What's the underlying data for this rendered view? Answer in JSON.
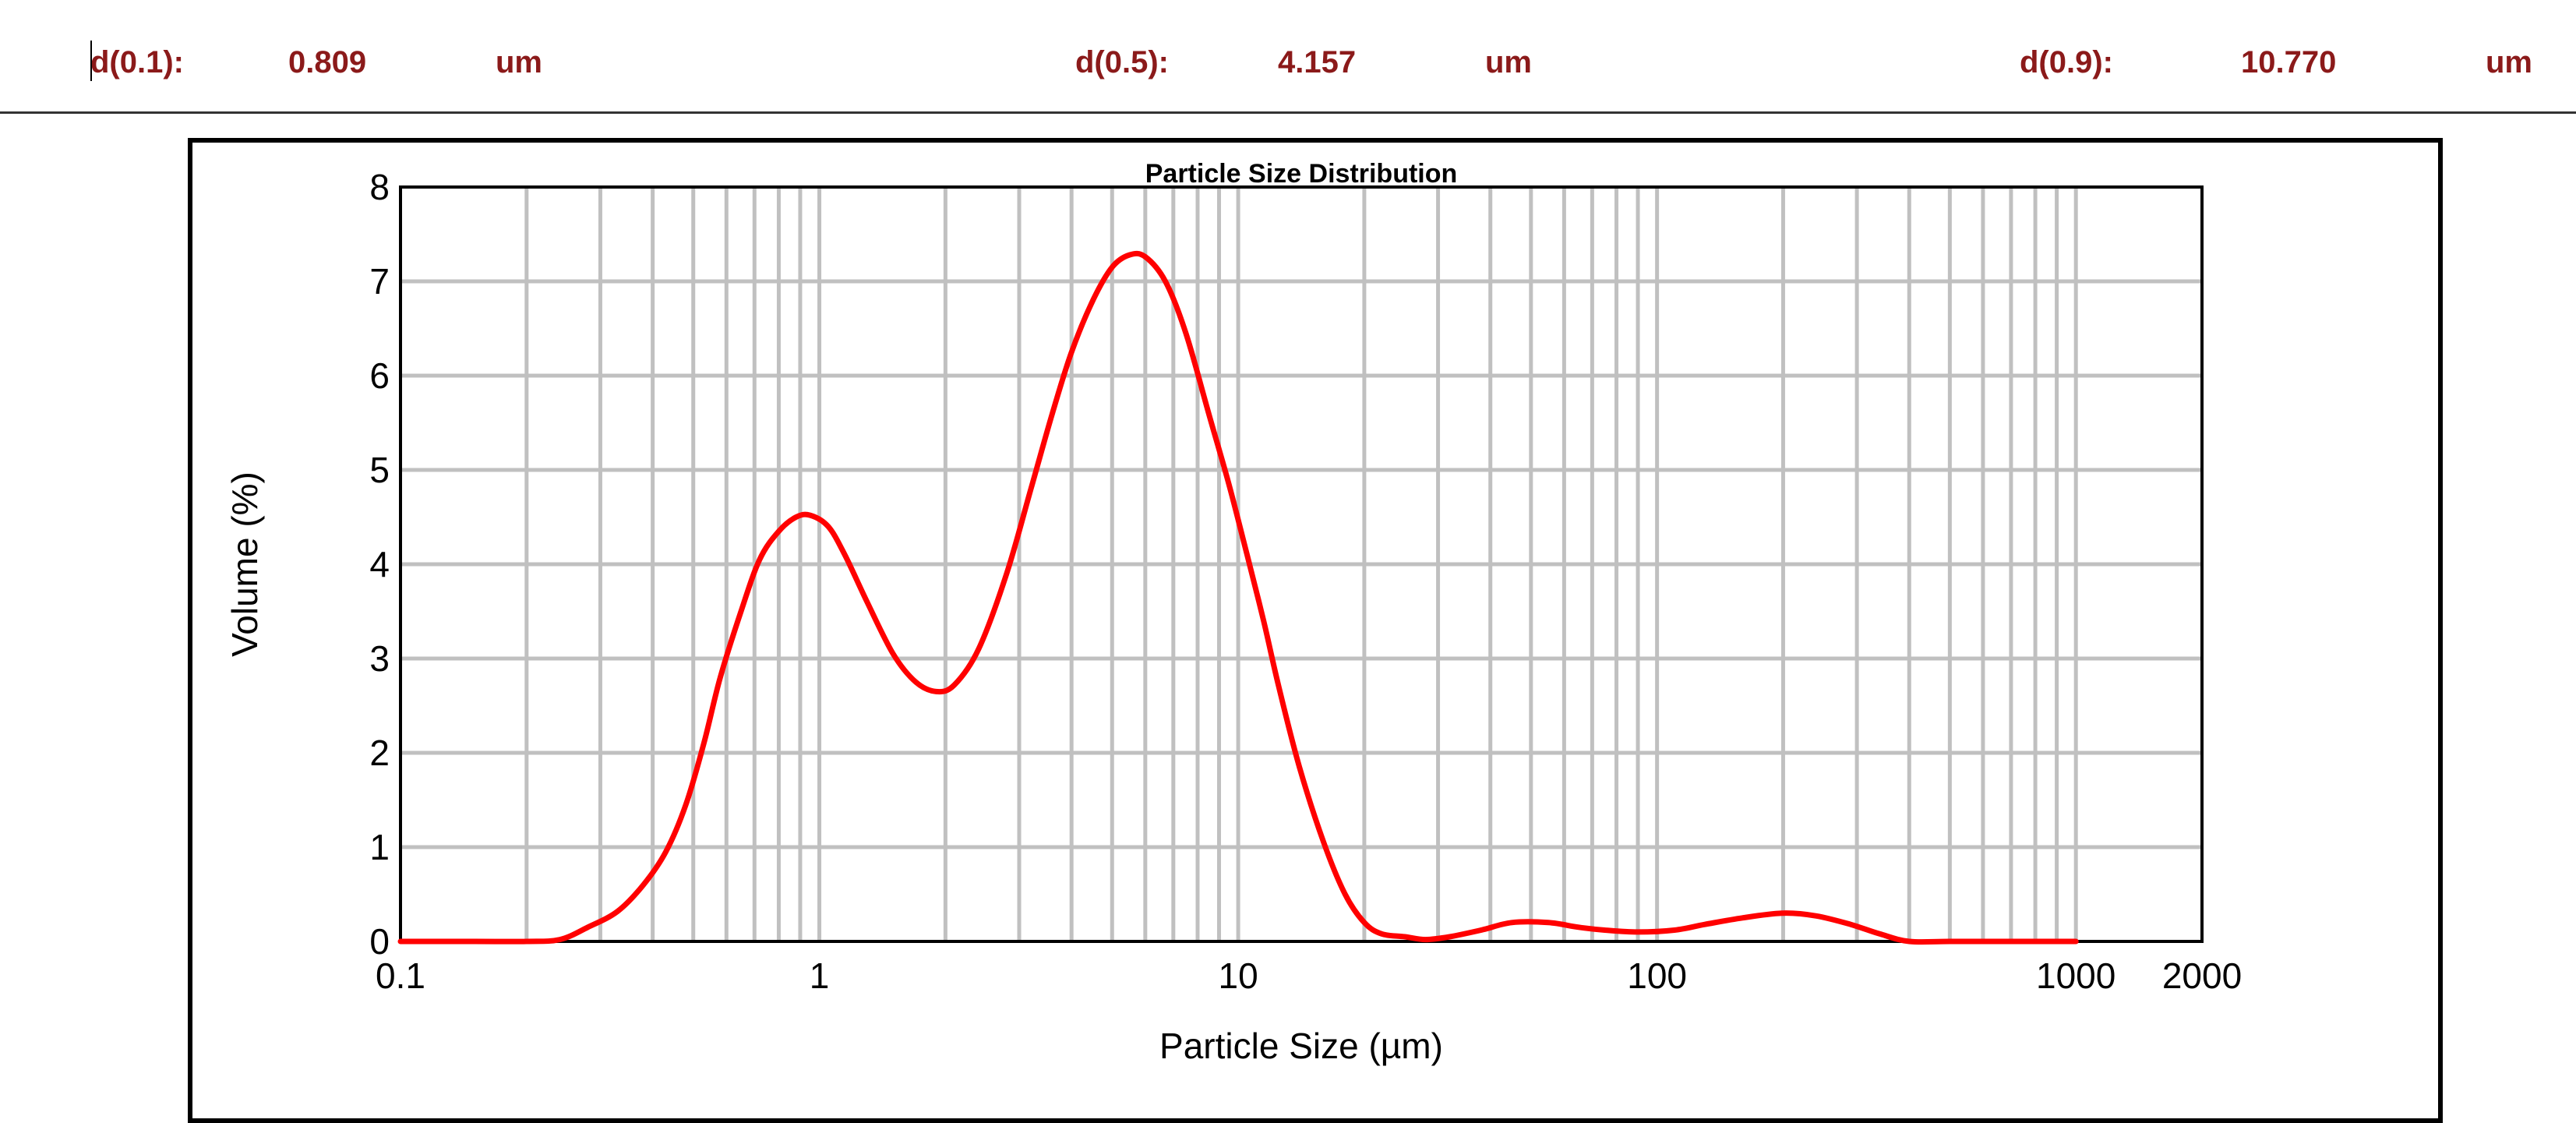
{
  "header": {
    "d10": {
      "label": "d(0.1):",
      "value": "0.809",
      "unit": "um"
    },
    "d50": {
      "label": "d(0.5):",
      "value": "4.157",
      "unit": "um"
    },
    "d90": {
      "label": "d(0.9):",
      "value": "10.770",
      "unit": "um"
    }
  },
  "colors": {
    "header_text": "#8b1a1a",
    "series": "#ff0000",
    "grid": "#c0c0c0"
  },
  "chart_data": {
    "type": "line",
    "title": "Particle Size Distribution",
    "xlabel": "Particle Size (µm)",
    "ylabel": "Volume (%)",
    "x_scale": "log",
    "xlim": [
      0.1,
      2000
    ],
    "ylim": [
      0,
      8
    ],
    "x_ticks": [
      0.1,
      1,
      10,
      100,
      1000,
      2000
    ],
    "x_tick_labels": [
      "0.1",
      "1",
      "10",
      "100",
      "1000",
      "2000"
    ],
    "y_ticks": [
      0,
      1,
      2,
      3,
      4,
      5,
      6,
      7,
      8
    ],
    "y_tick_labels": [
      "0",
      "1",
      "2",
      "3",
      "4",
      "5",
      "6",
      "7",
      "8"
    ],
    "grid": true,
    "series": [
      {
        "x": [
          0.1,
          0.15,
          0.2,
          0.24,
          0.28,
          0.33,
          0.38,
          0.43,
          0.48,
          0.53,
          0.58,
          0.65,
          0.72,
          0.8,
          0.88,
          0.95,
          1.05,
          1.15,
          1.3,
          1.5,
          1.7,
          1.9,
          2.1,
          2.4,
          2.8,
          3.2,
          3.6,
          4.0,
          4.5,
          5.0,
          5.5,
          6.0,
          6.7,
          7.5,
          8.5,
          9.5,
          10.5,
          11.5,
          12.5,
          14,
          16,
          18,
          20,
          22,
          25,
          28,
          32,
          38,
          45,
          55,
          65,
          75,
          90,
          110,
          130,
          160,
          200,
          240,
          290,
          340,
          400,
          500,
          700,
          1000
        ],
        "values": [
          0.0,
          0.0,
          0.0,
          0.02,
          0.15,
          0.32,
          0.6,
          0.95,
          1.45,
          2.1,
          2.8,
          3.5,
          4.05,
          4.35,
          4.5,
          4.52,
          4.4,
          4.1,
          3.6,
          3.05,
          2.75,
          2.65,
          2.72,
          3.1,
          3.9,
          4.8,
          5.6,
          6.25,
          6.8,
          7.15,
          7.28,
          7.26,
          7.0,
          6.45,
          5.6,
          4.85,
          4.1,
          3.4,
          2.7,
          1.85,
          1.05,
          0.5,
          0.2,
          0.08,
          0.05,
          0.02,
          0.05,
          0.12,
          0.2,
          0.2,
          0.15,
          0.12,
          0.1,
          0.12,
          0.18,
          0.25,
          0.3,
          0.27,
          0.18,
          0.08,
          0.0,
          0.0,
          0.0,
          0.0
        ]
      }
    ]
  }
}
